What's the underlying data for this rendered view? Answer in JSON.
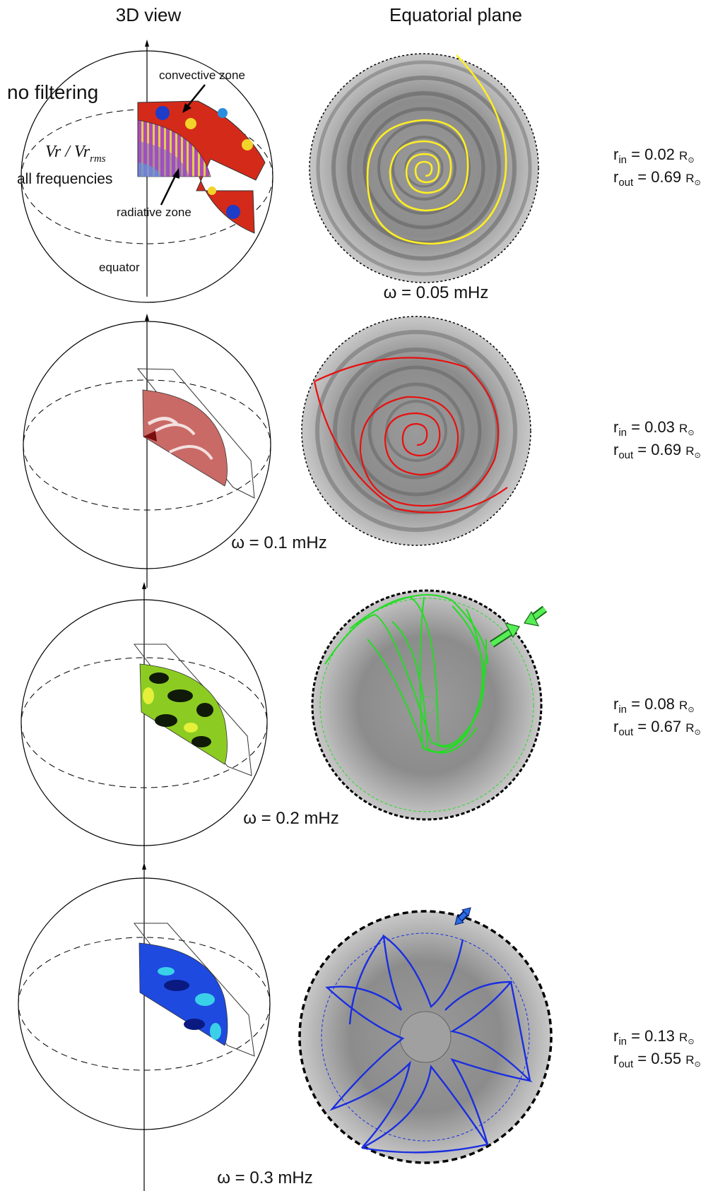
{
  "headers": {
    "left": "3D view",
    "right": "Equatorial plane"
  },
  "annotations": {
    "no_filtering": "no filtering",
    "ratio_main": "Vr / Vr",
    "ratio_sub": "rms",
    "all_frequencies": "all frequencies",
    "convective_zone": "convective zone",
    "radiative_zone": "radiative zone",
    "equator": "equator"
  },
  "rows": [
    {
      "omega": "ω = 0.05 mHz",
      "r_in": "0.02",
      "r_out": "0.69",
      "ray_color": "#ffee22",
      "cut_color": "#d42a1a"
    },
    {
      "omega": "ω = 0.1 mHz",
      "r_in": "0.03",
      "r_out": "0.69",
      "ray_color": "#e81010",
      "cut_color": "#c96a66"
    },
    {
      "omega": "ω = 0.2 mHz",
      "r_in": "0.08",
      "r_out": "0.67",
      "ray_color": "#22dd22",
      "cut_color": "#8ccc22"
    },
    {
      "omega": "ω = 0.3 mHz",
      "r_in": "0.13",
      "r_out": "0.55",
      "ray_color": "#1a2ee0",
      "cut_color": "#1e4ae0"
    }
  ],
  "radius_labels": {
    "in_prefix": "r",
    "in_sub": "in",
    "out_prefix": "r",
    "out_sub": "out",
    "equals": " = ",
    "unit": "R",
    "sun_symbol": "⊙"
  }
}
